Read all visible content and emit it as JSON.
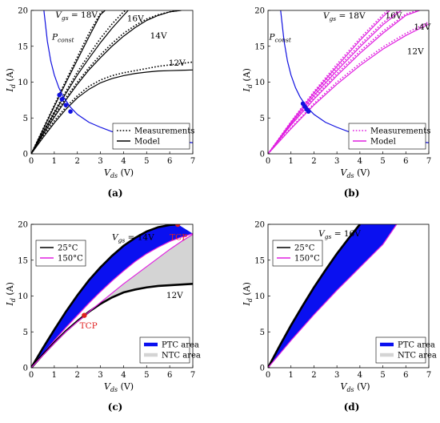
{
  "chart_data": [
    {
      "type": "line",
      "panel_label": "(a)",
      "xlabel": "V_ds (V)",
      "ylabel": "I_d (A)",
      "xlim": [
        0,
        7
      ],
      "ylim": [
        0,
        20
      ],
      "xticks": [
        0,
        1,
        2,
        3,
        4,
        5,
        6,
        7
      ],
      "yticks": [
        0,
        5,
        10,
        15,
        20
      ],
      "legend": {
        "placement": "bottom-right",
        "entries": [
          {
            "label": "Measurements",
            "style": "dotted",
            "color": "#000000"
          },
          {
            "label": "Model",
            "style": "solid",
            "color": "#000000"
          }
        ]
      },
      "annotations": [
        {
          "text": "V_gs = 18V",
          "x": 1.05,
          "y": 19.0
        },
        {
          "text": "16V",
          "x": 4.15,
          "y": 18.5
        },
        {
          "text": "14V",
          "x": 5.15,
          "y": 16.1
        },
        {
          "text": "12V",
          "x": 5.95,
          "y": 12.3
        },
        {
          "text": "P_const",
          "x": 0.9,
          "y": 15.9
        }
      ],
      "series": [
        {
          "name": "18V",
          "role": "model",
          "color": "#000000",
          "x": [
            0,
            0.5,
            1,
            1.5,
            2,
            2.5,
            3,
            3.2
          ],
          "y": [
            0,
            3.3,
            6.6,
            9.9,
            13.1,
            16.3,
            19.4,
            20
          ]
        },
        {
          "name": "18V",
          "role": "measurement",
          "color": "#000000",
          "x": [
            0,
            0.5,
            1,
            1.5,
            2,
            2.5,
            3,
            3.15
          ],
          "y": [
            0,
            3.4,
            6.8,
            10.2,
            13.5,
            16.8,
            19.6,
            20
          ]
        },
        {
          "name": "16V",
          "role": "model",
          "color": "#000000",
          "x": [
            0,
            0.5,
            1,
            1.5,
            2,
            2.5,
            3,
            3.5,
            4,
            4.2
          ],
          "y": [
            0,
            2.9,
            5.7,
            8.4,
            11,
            13.3,
            15.5,
            17.5,
            19.3,
            20
          ]
        },
        {
          "name": "16V",
          "role": "measurement",
          "color": "#000000",
          "x": [
            0,
            0.5,
            1,
            1.5,
            2,
            2.5,
            3,
            3.5,
            4,
            4.1
          ],
          "y": [
            0,
            3.0,
            5.9,
            8.7,
            11.4,
            13.8,
            16.1,
            18.1,
            19.8,
            20
          ]
        },
        {
          "name": "14V",
          "role": "model",
          "color": "#000000",
          "x": [
            0,
            0.5,
            1,
            1.5,
            2,
            2.5,
            3,
            3.5,
            4,
            4.5,
            5,
            5.5,
            6,
            6.5
          ],
          "y": [
            0,
            2.6,
            5.1,
            7.5,
            9.7,
            11.7,
            13.4,
            15,
            16.4,
            17.6,
            18.6,
            19.3,
            19.8,
            20
          ]
        },
        {
          "name": "14V",
          "role": "measurement",
          "color": "#000000",
          "x": [
            0,
            0.5,
            1,
            1.5,
            2,
            2.5,
            3,
            3.5,
            4,
            4.5,
            5,
            5.5,
            6,
            6.4
          ],
          "y": [
            0,
            2.8,
            5.4,
            7.8,
            10,
            12.0,
            13.8,
            15.4,
            16.8,
            17.9,
            18.8,
            19.4,
            19.8,
            20
          ]
        },
        {
          "name": "12V",
          "role": "model",
          "color": "#000000",
          "x": [
            0,
            0.5,
            1,
            1.5,
            2,
            2.5,
            3,
            3.5,
            4,
            4.5,
            5,
            5.5,
            6,
            6.5,
            7
          ],
          "y": [
            0,
            2.2,
            4.3,
            6.2,
            7.8,
            9.0,
            9.9,
            10.5,
            10.9,
            11.2,
            11.4,
            11.55,
            11.6,
            11.65,
            11.7
          ]
        },
        {
          "name": "12V",
          "role": "measurement",
          "color": "#000000",
          "x": [
            0,
            0.5,
            1,
            1.5,
            2,
            2.5,
            3,
            3.5,
            4,
            4.5,
            5,
            5.5,
            6,
            6.5,
            7
          ],
          "y": [
            0,
            2.4,
            4.6,
            6.5,
            8.1,
            9.4,
            10.3,
            10.9,
            11.3,
            11.6,
            11.9,
            12.2,
            12.4,
            12.6,
            12.8
          ]
        },
        {
          "name": "P_const",
          "color": "#1010e0",
          "x": [
            0.55,
            0.7,
            0.85,
            1,
            1.2,
            1.4,
            1.7,
            2,
            2.5,
            3,
            3.5,
            4,
            5,
            6,
            7
          ],
          "y": [
            20,
            15.7,
            12.9,
            11,
            9.2,
            7.9,
            6.5,
            5.5,
            4.4,
            3.7,
            3.1,
            2.8,
            2.2,
            1.8,
            1.55
          ]
        },
        {
          "name": "intersections",
          "color": "#1010e0",
          "markers": true,
          "x": [
            1.22,
            1.33,
            1.5,
            1.7
          ],
          "y": [
            8.2,
            7.6,
            6.8,
            5.9
          ]
        }
      ]
    },
    {
      "type": "line",
      "panel_label": "(b)",
      "xlabel": "V_ds (V)",
      "ylabel": "I_d (A)",
      "xlim": [
        0,
        7
      ],
      "ylim": [
        0,
        20
      ],
      "xticks": [
        0,
        1,
        2,
        3,
        4,
        5,
        6,
        7
      ],
      "yticks": [
        0,
        5,
        10,
        15,
        20
      ],
      "legend": {
        "placement": "bottom-right",
        "entries": [
          {
            "label": "Measurements",
            "style": "dotted",
            "color": "#e020e0"
          },
          {
            "label": "Model",
            "style": "solid",
            "color": "#e020e0"
          }
        ]
      },
      "annotations": [
        {
          "text": "V_gs = 18V",
          "x": 2.4,
          "y": 18.9
        },
        {
          "text": "16V",
          "x": 5.1,
          "y": 18.9
        },
        {
          "text": "14V",
          "x": 6.35,
          "y": 17.3
        },
        {
          "text": "12V",
          "x": 6.05,
          "y": 13.9
        },
        {
          "text": "P_const",
          "x": 0.05,
          "y": 15.9
        }
      ],
      "series": [
        {
          "name": "18V",
          "role": "model",
          "color": "#e020e0",
          "x": [
            0,
            1,
            2,
            3,
            4,
            5,
            5.3
          ],
          "y": [
            0,
            4.4,
            8.5,
            12.2,
            15.8,
            19.1,
            20
          ]
        },
        {
          "name": "18V",
          "role": "measurement",
          "color": "#e020e0",
          "x": [
            0,
            1,
            2,
            3,
            4,
            5,
            5.2
          ],
          "y": [
            0,
            4.5,
            8.7,
            12.5,
            16.1,
            19.4,
            20
          ]
        },
        {
          "name": "16V",
          "role": "model",
          "color": "#e020e0",
          "x": [
            0,
            1,
            2,
            3,
            4,
            5,
            5.8
          ],
          "y": [
            0,
            4.2,
            8.1,
            11.6,
            14.9,
            18,
            20
          ]
        },
        {
          "name": "16V",
          "role": "measurement",
          "color": "#e020e0",
          "x": [
            0,
            1,
            2,
            3,
            4,
            5,
            5.7
          ],
          "y": [
            0,
            4.3,
            8.3,
            11.9,
            15.2,
            18.3,
            20
          ]
        },
        {
          "name": "14V",
          "role": "model",
          "color": "#e020e0",
          "x": [
            0,
            1,
            2,
            3,
            4,
            5,
            6,
            6.6
          ],
          "y": [
            0,
            4.0,
            7.6,
            10.9,
            14,
            16.8,
            19.3,
            20
          ]
        },
        {
          "name": "14V",
          "role": "measurement",
          "color": "#e020e0",
          "x": [
            0,
            1,
            2,
            3,
            4,
            5,
            6,
            6.5
          ],
          "y": [
            0,
            4.1,
            7.8,
            11.2,
            14.3,
            17.1,
            19.5,
            20
          ]
        },
        {
          "name": "12V",
          "role": "model",
          "color": "#e020e0",
          "x": [
            0,
            1,
            2,
            3,
            4,
            5,
            6,
            7
          ],
          "y": [
            0,
            3.5,
            6.8,
            9.7,
            12.3,
            14.6,
            16.5,
            18.1
          ]
        },
        {
          "name": "12V",
          "role": "measurement",
          "color": "#e020e0",
          "x": [
            0,
            1,
            2,
            3,
            4,
            5,
            6,
            7
          ],
          "y": [
            0,
            3.6,
            7.0,
            10.0,
            12.6,
            14.9,
            16.8,
            18.4
          ]
        },
        {
          "name": "P_const",
          "color": "#1010e0",
          "x": [
            0.55,
            0.7,
            0.85,
            1,
            1.2,
            1.4,
            1.7,
            2,
            2.5,
            3,
            3.5,
            4,
            5,
            6,
            7
          ],
          "y": [
            20,
            15.7,
            12.9,
            11,
            9.2,
            7.9,
            6.5,
            5.5,
            4.4,
            3.7,
            3.1,
            2.8,
            2.2,
            1.8,
            1.55
          ]
        },
        {
          "name": "intersections",
          "color": "#1010e0",
          "markers": true,
          "x": [
            1.52,
            1.6,
            1.68,
            1.76
          ],
          "y": [
            7.0,
            6.6,
            6.2,
            5.9
          ]
        }
      ]
    },
    {
      "type": "area",
      "panel_label": "(c)",
      "xlabel": "V_ds (V)",
      "ylabel": "I_d (A)",
      "xlim": [
        0,
        7
      ],
      "ylim": [
        0,
        20
      ],
      "xticks": [
        0,
        1,
        2,
        3,
        4,
        5,
        6,
        7
      ],
      "yticks": [
        0,
        5,
        10,
        15,
        20
      ],
      "legends": [
        {
          "placement": "top-left",
          "entries": [
            {
              "label": "25°C",
              "color": "#000000"
            },
            {
              "label": "150°C",
              "color": "#e020e0"
            }
          ]
        },
        {
          "placement": "bottom-right",
          "entries": [
            {
              "label": "PTC area",
              "color": "#0a10f0"
            },
            {
              "label": "NTC area",
              "color": "#d4d4d4"
            }
          ]
        }
      ],
      "annotations": [
        {
          "text": "V_gs = 14V",
          "x": 3.5,
          "y": 17.8
        },
        {
          "text": "12V",
          "x": 5.85,
          "y": 9.7
        },
        {
          "text": "TCP",
          "x": 6.0,
          "y": 17.8,
          "color": "#e02020"
        },
        {
          "text": "TCP",
          "x": 2.1,
          "y": 5.5,
          "color": "#e02020"
        }
      ],
      "series": [
        {
          "name": "14V 25°C",
          "color": "#000000",
          "x": [
            0,
            0.5,
            1,
            1.5,
            2,
            2.5,
            3,
            3.5,
            4,
            4.5,
            5,
            5.5,
            6,
            6.35
          ],
          "y": [
            0,
            2.7,
            5.3,
            7.8,
            10.1,
            12.2,
            14.0,
            15.6,
            17.0,
            18.1,
            19.0,
            19.6,
            19.9,
            20
          ]
        },
        {
          "name": "14V 150°C",
          "color": "#e020e0",
          "x": [
            0,
            0.5,
            1,
            1.5,
            2,
            2.5,
            3,
            3.5,
            4,
            4.5,
            5,
            5.5,
            6,
            6.5,
            7
          ],
          "y": [
            0,
            1.9,
            3.8,
            5.6,
            7.3,
            9.0,
            10.6,
            12.1,
            13.5,
            14.8,
            15.9,
            16.8,
            17.6,
            18.2,
            18.7
          ]
        },
        {
          "name": "12V 25°C",
          "color": "#000000",
          "x": [
            0,
            0.5,
            1,
            1.5,
            2,
            2.5,
            3,
            3.5,
            4,
            4.5,
            5,
            5.5,
            6,
            6.5,
            7
          ],
          "y": [
            0,
            1.8,
            3.5,
            5.1,
            6.5,
            7.8,
            8.9,
            9.8,
            10.5,
            10.9,
            11.2,
            11.4,
            11.5,
            11.6,
            11.7
          ]
        },
        {
          "name": "12V 150°C",
          "color": "#e020e0",
          "x": [
            0,
            0.5,
            1,
            1.5,
            2,
            2.3,
            2.5,
            3,
            3.5,
            4,
            4.5,
            5,
            5.5,
            6,
            6.5,
            7
          ],
          "y": [
            0,
            1.7,
            3.4,
            5.0,
            6.4,
            7.2,
            7.8,
            9.1,
            10.4,
            11.7,
            12.9,
            14.1,
            15.3,
            16.5,
            17.6,
            18.6
          ]
        },
        {
          "name": "TCP points",
          "color": "#e02020",
          "markers": true,
          "x": [
            6.35,
            2.3
          ],
          "y": [
            20,
            7.3
          ]
        }
      ]
    },
    {
      "type": "area",
      "panel_label": "(d)",
      "xlabel": "V_ds (V)",
      "ylabel": "I_d (A)",
      "xlim": [
        0,
        7
      ],
      "ylim": [
        0,
        20
      ],
      "xticks": [
        0,
        1,
        2,
        3,
        4,
        5,
        6,
        7
      ],
      "yticks": [
        0,
        5,
        10,
        15,
        20
      ],
      "legends": [
        {
          "placement": "top-left",
          "entries": [
            {
              "label": "25°C",
              "color": "#000000"
            },
            {
              "label": "150°C",
              "color": "#e020e0"
            }
          ]
        },
        {
          "placement": "bottom-right",
          "entries": [
            {
              "label": "PTC area",
              "color": "#0a10f0"
            },
            {
              "label": "NTC area",
              "color": "#d4d4d4"
            }
          ]
        }
      ],
      "annotations": [
        {
          "text": "V_gs = 16V",
          "x": 2.2,
          "y": 18.3
        }
      ],
      "series": [
        {
          "name": "16V 25°C",
          "color": "#000000",
          "x": [
            0,
            0.5,
            1,
            1.5,
            2,
            2.5,
            3,
            3.5,
            4.0
          ],
          "y": [
            0,
            3.0,
            5.9,
            8.6,
            11.2,
            13.6,
            15.9,
            18.0,
            20
          ]
        },
        {
          "name": "16V 150°C",
          "color": "#e020e0",
          "x": [
            0,
            0.5,
            1,
            1.5,
            2,
            2.5,
            3,
            3.5,
            4,
            4.5,
            5,
            5.6
          ],
          "y": [
            0,
            1.9,
            3.8,
            5.6,
            7.4,
            9.1,
            10.8,
            12.4,
            14.0,
            15.6,
            17.2,
            20
          ]
        }
      ]
    }
  ],
  "colors": {
    "ptc_fill": "#0a10f0",
    "ntc_fill": "#d4d4d4",
    "pconst": "#1010e0",
    "magenta": "#e020e0",
    "tcp": "#e02020"
  }
}
